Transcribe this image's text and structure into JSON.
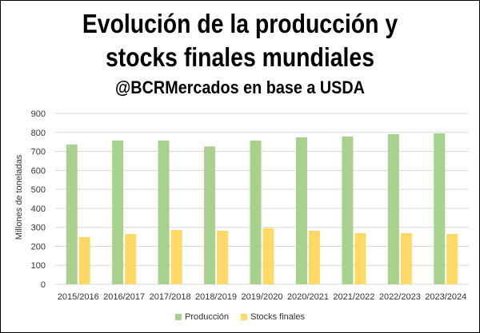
{
  "chart_data": {
    "type": "bar",
    "title": "Evolución de la producción y stocks finales mundiales",
    "title_line1": "Evolución de la producción y",
    "title_line2": "stocks finales mundiales",
    "subtitle": "@BCRMercados en base a USDA",
    "xlabel": "",
    "ylabel": "Millones de toneladas",
    "ylim": [
      0,
      900
    ],
    "yticks": [
      "0",
      "100",
      "200",
      "300",
      "400",
      "500",
      "600",
      "700",
      "800",
      "900"
    ],
    "grid": true,
    "legend_position": "bottom",
    "categories": [
      "2015/2016",
      "2016/2017",
      "2017/2018",
      "2018/2019",
      "2019/2020",
      "2020/2021",
      "2021/2022",
      "2022/2023",
      "2023/2024"
    ],
    "series": [
      {
        "name": "Producción",
        "color": "#a9d18e",
        "values": [
          736,
          757,
          757,
          726,
          757,
          774,
          778,
          791,
          795
        ]
      },
      {
        "name": "Stocks finales",
        "color": "#ffd966",
        "values": [
          248,
          265,
          286,
          282,
          296,
          282,
          269,
          269,
          265
        ]
      }
    ]
  }
}
